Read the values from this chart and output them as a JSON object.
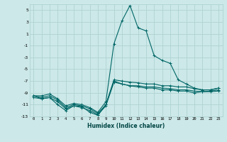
{
  "xlabel": "Humidex (Indice chaleur)",
  "bg_color": "#cce8e8",
  "grid_color": "#aacfcf",
  "line_color": "#006666",
  "xlim": [
    -0.5,
    23.5
  ],
  "ylim": [
    -13,
    6
  ],
  "yticks": [
    5,
    3,
    1,
    -1,
    -3,
    -5,
    -7,
    -9,
    -11,
    -13
  ],
  "xticks": [
    0,
    1,
    2,
    3,
    4,
    5,
    6,
    7,
    8,
    9,
    10,
    11,
    12,
    13,
    14,
    15,
    16,
    17,
    18,
    19,
    20,
    21,
    22,
    23
  ],
  "x": [
    0,
    1,
    2,
    3,
    4,
    5,
    6,
    7,
    8,
    9,
    10,
    11,
    12,
    13,
    14,
    15,
    16,
    17,
    18,
    19,
    20,
    21,
    22,
    23
  ],
  "y_max": [
    -9.5,
    -9.5,
    -9.2,
    -10.0,
    -11.2,
    -10.8,
    -11.0,
    -11.5,
    -12.3,
    -10.5,
    -0.7,
    3.2,
    5.8,
    2.0,
    1.5,
    -2.7,
    -3.5,
    -4.0,
    -6.8,
    -7.5,
    -8.2,
    -8.5,
    -8.5,
    -8.2
  ],
  "y_l1": [
    -9.5,
    -9.8,
    -9.5,
    -10.2,
    -11.5,
    -11.0,
    -11.2,
    -11.7,
    -12.5,
    -11.0,
    -6.8,
    -7.0,
    -7.2,
    -7.3,
    -7.5,
    -7.5,
    -7.8,
    -7.8,
    -8.0,
    -8.0,
    -8.3,
    -8.5,
    -8.5,
    -8.2
  ],
  "y_l2": [
    -9.8,
    -10.0,
    -9.8,
    -10.5,
    -11.7,
    -11.2,
    -11.5,
    -12.0,
    -12.7,
    -11.2,
    -7.2,
    -7.5,
    -7.8,
    -7.8,
    -8.0,
    -8.0,
    -8.2,
    -8.3,
    -8.5,
    -8.5,
    -8.7,
    -8.8,
    -8.7,
    -8.5
  ],
  "y_min": [
    -9.5,
    -10.0,
    -9.8,
    -11.0,
    -12.0,
    -11.2,
    -11.3,
    -12.3,
    -12.8,
    -11.0,
    -7.0,
    -7.5,
    -7.8,
    -8.0,
    -8.2,
    -8.2,
    -8.5,
    -8.5,
    -8.7,
    -8.7,
    -9.0,
    -8.8,
    -8.8,
    -8.7
  ]
}
